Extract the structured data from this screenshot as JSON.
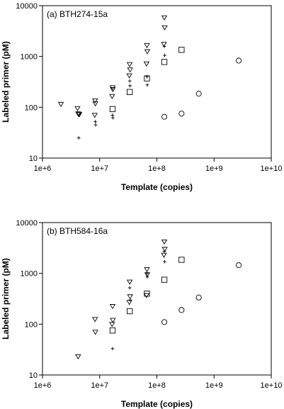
{
  "chart_data": [
    {
      "type": "scatter",
      "title": "(a) BTH274-15a",
      "xlabel": "Template (copies)",
      "ylabel": "Labeled primer (pM)",
      "xscale": "log",
      "yscale": "log",
      "xlim": [
        1000000,
        10000000000
      ],
      "ylim": [
        10,
        10000
      ],
      "xticks": [
        "1e+6",
        "1e+7",
        "1e+8",
        "1e+9",
        "1e+10"
      ],
      "yticks": [
        "10",
        "100",
        "1000",
        "10000"
      ],
      "series": [
        {
          "marker": "triangle-down",
          "points": [
            [
              2100000,
              115
            ],
            [
              4100000,
              95
            ],
            [
              4200000,
              75
            ],
            [
              4300000,
              73
            ],
            [
              4400000,
              72
            ],
            [
              8300000,
              135
            ],
            [
              8400000,
              118
            ],
            [
              8200000,
              70
            ],
            [
              16800000,
              245
            ],
            [
              17000000,
              225
            ],
            [
              16500000,
              165
            ],
            [
              33500000,
              700
            ],
            [
              34000000,
              550
            ],
            [
              33000000,
              420
            ],
            [
              67000000,
              1650
            ],
            [
              68000000,
              1250
            ],
            [
              66000000,
              720
            ],
            [
              135000000,
              5800
            ],
            [
              137000000,
              3700
            ],
            [
              133000000,
              1750
            ]
          ]
        },
        {
          "marker": "plus",
          "points": [
            [
              4300000,
              25
            ],
            [
              8400000,
              52
            ],
            [
              8500000,
              45
            ],
            [
              16800000,
              70
            ],
            [
              17000000,
              62
            ],
            [
              33500000,
              330
            ],
            [
              34000000,
              265
            ],
            [
              67000000,
              400
            ],
            [
              68000000,
              275
            ],
            [
              135000000,
              1580
            ],
            [
              137000000,
              1050
            ]
          ]
        },
        {
          "marker": "square",
          "points": [
            [
              16800000,
              92
            ],
            [
              33500000,
              200
            ],
            [
              67000000,
              370
            ],
            [
              135000000,
              780
            ],
            [
              270000000,
              1350
            ]
          ]
        },
        {
          "marker": "circle",
          "points": [
            [
              135000000,
              65
            ],
            [
              270000000,
              75
            ],
            [
              540000000,
              185
            ],
            [
              2700000000,
              830
            ]
          ]
        }
      ]
    },
    {
      "type": "scatter",
      "title": "(b) BTH584-16a",
      "xlabel": "Template (copies)",
      "ylabel": "Labeled primer (pM)",
      "xscale": "log",
      "yscale": "log",
      "xlim": [
        1000000,
        10000000000
      ],
      "ylim": [
        10,
        10000
      ],
      "xticks": [
        "1e+6",
        "1e+7",
        "1e+8",
        "1e+9",
        "1e+10"
      ],
      "yticks": [
        "10",
        "100",
        "1000",
        "10000"
      ],
      "series": [
        {
          "marker": "triangle-down",
          "points": [
            [
              4200000,
              23
            ],
            [
              8300000,
              125
            ],
            [
              8400000,
              70
            ],
            [
              16800000,
              225
            ],
            [
              17000000,
              120
            ],
            [
              16500000,
              100
            ],
            [
              33500000,
              680
            ],
            [
              34000000,
              350
            ],
            [
              33000000,
              270
            ],
            [
              67000000,
              1200
            ],
            [
              68000000,
              950
            ],
            [
              66000000,
              370
            ],
            [
              135000000,
              4200
            ],
            [
              137000000,
              3000
            ],
            [
              133000000,
              2300
            ]
          ]
        },
        {
          "marker": "plus",
          "points": [
            [
              16800000,
              33
            ],
            [
              33500000,
              520
            ],
            [
              34000000,
              300
            ],
            [
              67000000,
              1000
            ],
            [
              68000000,
              850
            ],
            [
              135000000,
              2700
            ],
            [
              137000000,
              1700
            ]
          ]
        },
        {
          "marker": "square",
          "points": [
            [
              16800000,
              75
            ],
            [
              33500000,
              180
            ],
            [
              67000000,
              400
            ],
            [
              135000000,
              750
            ],
            [
              270000000,
              1850
            ]
          ]
        },
        {
          "marker": "circle",
          "points": [
            [
              135000000,
              110
            ],
            [
              270000000,
              190
            ],
            [
              540000000,
              335
            ],
            [
              2700000000,
              1450
            ]
          ]
        }
      ]
    }
  ]
}
